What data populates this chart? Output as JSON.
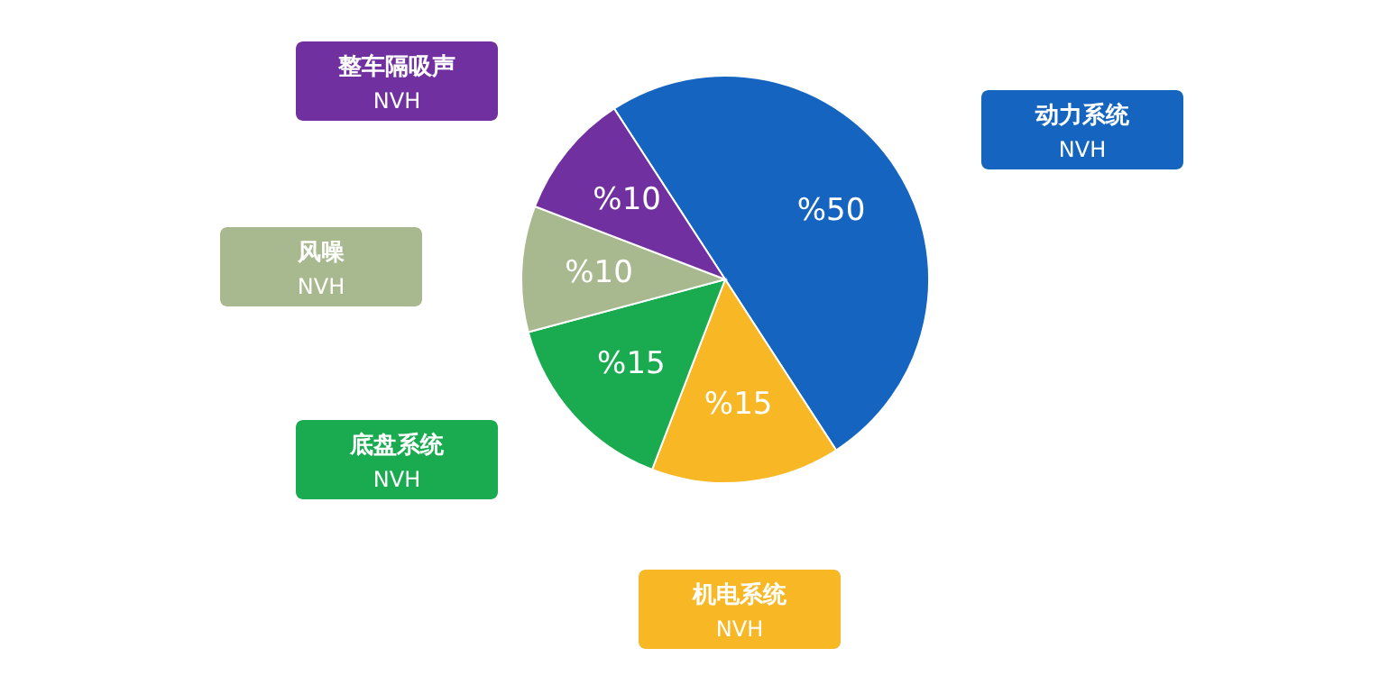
{
  "chart_data": {
    "type": "pie",
    "categories": [
      "动力系统 NVH",
      "机电系统 NVH",
      "底盘系统 NVH",
      "风噪 NVH",
      "整车隔吸声 NVH"
    ],
    "values": [
      50,
      15,
      15,
      10,
      10
    ],
    "colors": [
      "#1565c0",
      "#f8b825",
      "#1aaa50",
      "#a9b98f",
      "#7030a0"
    ],
    "value_labels": [
      "%50",
      "%15",
      "%15",
      "%10",
      "%10"
    ]
  }
}
